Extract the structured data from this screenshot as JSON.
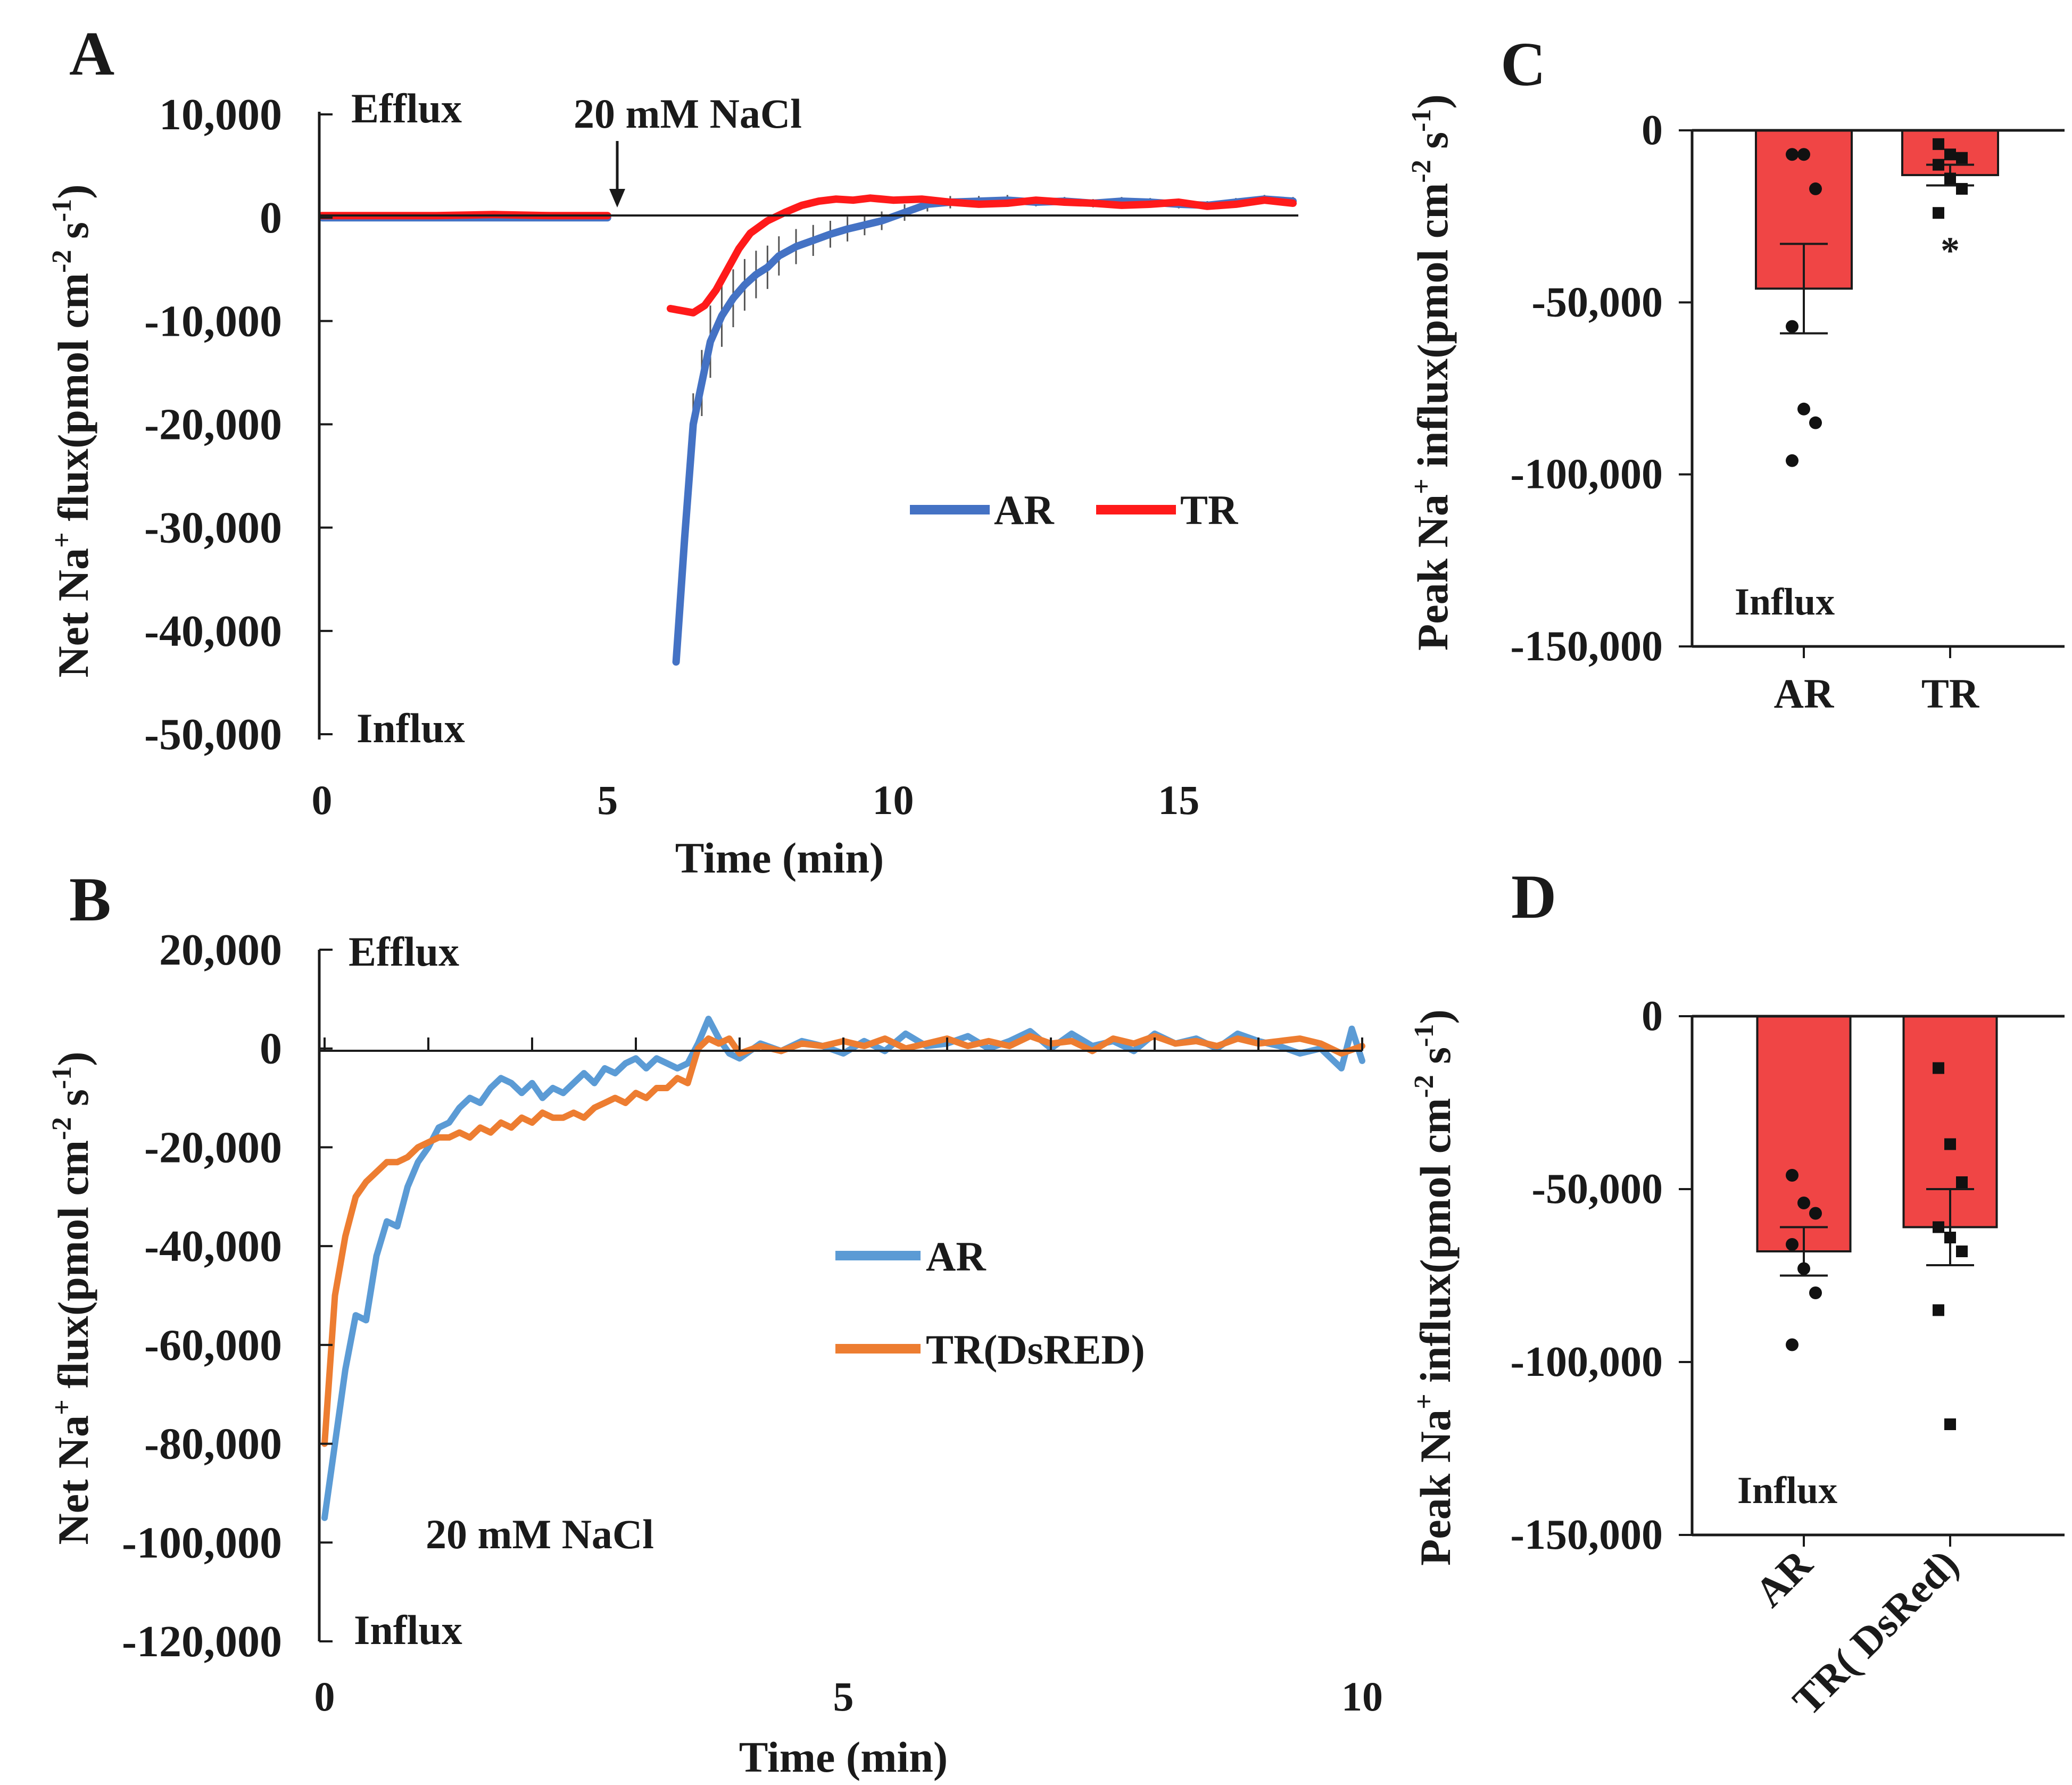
{
  "colors": {
    "ar_a": "#4472c4",
    "tr_a": "#ff1a1a",
    "ar_b": "#5b9bd5",
    "tr_b": "#ed7d31",
    "bar_fill": "#f04545",
    "axis": "#1a1a1a"
  },
  "chart_data": [
    {
      "panel": "A",
      "type": "line",
      "title": "",
      "xlabel": "Time (min)",
      "ylabel": "Net Na+ flux(pmol cm-2 s-1)",
      "ylabel_parts": [
        "Net Na",
        "+",
        " flux(pmol cm",
        "-2",
        " s",
        "-1",
        ")"
      ],
      "xlim": [
        0,
        17
      ],
      "ylim": [
        -50000,
        10000
      ],
      "x_ticks": [
        "0",
        "5",
        "10",
        "15"
      ],
      "x_tick_values": [
        0,
        5,
        10,
        15
      ],
      "y_ticks": [
        "10,000",
        "0",
        "-10,000",
        "-20,000",
        "-30,000",
        "-40,000",
        "-50,000"
      ],
      "y_tick_values": [
        10000,
        0,
        -10000,
        -20000,
        -30000,
        -40000,
        -50000
      ],
      "annotations": {
        "top": "Efflux",
        "bottom": "Influx",
        "treatment": "20 mM NaCl",
        "treatment_x": 5.4
      },
      "legend": [
        "AR",
        "TR"
      ],
      "series": [
        {
          "name": "AR",
          "color_key": "ar_a",
          "x": [
            0,
            1,
            2,
            3,
            4,
            5,
            6.2,
            6.35,
            6.5,
            6.65,
            6.8,
            7.0,
            7.2,
            7.4,
            7.6,
            7.8,
            8.0,
            8.3,
            8.6,
            8.9,
            9.2,
            9.5,
            9.8,
            10.2,
            10.6,
            11.0,
            11.5,
            12.0,
            12.5,
            13.0,
            13.5,
            14.0,
            14.5,
            15.0,
            15.5,
            16.0,
            16.5,
            17.0
          ],
          "y": [
            0,
            0,
            0,
            0,
            0,
            0,
            -43000,
            -31000,
            -20000,
            -16000,
            -12000,
            -9500,
            -7800,
            -6500,
            -5500,
            -4800,
            -3700,
            -2800,
            -2200,
            -1600,
            -1100,
            -700,
            -300,
            500,
            1300,
            1500,
            1600,
            1700,
            1500,
            1600,
            1400,
            1600,
            1500,
            1300,
            1200,
            1500,
            1800,
            1600
          ],
          "error": [
            0,
            0,
            0,
            0,
            0,
            0,
            0,
            0,
            3000,
            3200,
            3500,
            3000,
            2800,
            2500,
            2300,
            2100,
            1900,
            1700,
            1500,
            1300,
            1200,
            1000,
            900,
            800,
            700,
            600,
            500,
            500,
            400,
            400,
            400,
            400,
            400,
            400,
            400,
            400,
            400,
            400
          ]
        },
        {
          "name": "TR",
          "color_key": "tr_a",
          "x": [
            0,
            1,
            2,
            3,
            4,
            5,
            6.1,
            6.3,
            6.5,
            6.7,
            6.9,
            7.1,
            7.3,
            7.5,
            7.8,
            8.1,
            8.4,
            8.7,
            9.0,
            9.3,
            9.6,
            10.0,
            10.5,
            11.0,
            11.5,
            12.0,
            12.5,
            13.0,
            13.5,
            14.0,
            14.5,
            15.0,
            15.5,
            16.0,
            16.5,
            17.0
          ],
          "y": [
            200,
            200,
            200,
            300,
            200,
            200,
            -8800,
            -9000,
            -9200,
            -8500,
            -7000,
            -5000,
            -3000,
            -1500,
            -300,
            500,
            1200,
            1600,
            1800,
            1700,
            1900,
            1700,
            1800,
            1500,
            1300,
            1400,
            1700,
            1500,
            1400,
            1200,
            1300,
            1500,
            1100,
            1300,
            1700,
            1400
          ]
        }
      ]
    },
    {
      "panel": "B",
      "type": "line",
      "title": "",
      "xlabel": "Time (min)",
      "ylabel": "Net Na+ flux(pmol cm-2 s-1)",
      "ylabel_parts": [
        "Net Na",
        "+",
        " flux(pmol cm",
        "-2",
        " s",
        "-1",
        ")"
      ],
      "xlim": [
        0,
        10
      ],
      "ylim": [
        -120000,
        20000
      ],
      "x_ticks": [
        "0",
        "5",
        "10"
      ],
      "x_tick_values": [
        0,
        5,
        10
      ],
      "y_ticks": [
        "20,000",
        "0",
        "-20,000",
        "-40,000",
        "-60,000",
        "-80,000",
        "-100,000",
        "-120,000"
      ],
      "y_tick_values": [
        20000,
        0,
        -20000,
        -40000,
        -60000,
        -80000,
        -100000,
        -120000
      ],
      "annotations": {
        "top": "Efflux",
        "bottom": "Influx",
        "treatment": "20 mM NaCl"
      },
      "legend": [
        "AR",
        "TR(DsRED)"
      ],
      "series": [
        {
          "name": "AR",
          "color_key": "ar_b",
          "x": [
            0,
            0.1,
            0.2,
            0.3,
            0.4,
            0.5,
            0.6,
            0.7,
            0.8,
            0.9,
            1.0,
            1.1,
            1.2,
            1.3,
            1.4,
            1.5,
            1.6,
            1.7,
            1.8,
            1.9,
            2.0,
            2.1,
            2.2,
            2.3,
            2.4,
            2.5,
            2.6,
            2.7,
            2.8,
            2.9,
            3.0,
            3.1,
            3.2,
            3.3,
            3.4,
            3.5,
            3.6,
            3.7,
            3.8,
            3.9,
            4.0,
            4.2,
            4.4,
            4.6,
            4.8,
            5.0,
            5.2,
            5.4,
            5.6,
            5.8,
            6.0,
            6.2,
            6.4,
            6.6,
            6.8,
            7.0,
            7.2,
            7.4,
            7.6,
            7.8,
            8.0,
            8.2,
            8.4,
            8.6,
            8.8,
            9.0,
            9.2,
            9.4,
            9.6,
            9.8,
            9.9,
            10.0
          ],
          "y": [
            -95000,
            -80000,
            -65000,
            -54000,
            -55000,
            -42000,
            -35000,
            -36000,
            -28000,
            -23000,
            -20000,
            -16000,
            -15000,
            -12000,
            -10000,
            -11000,
            -8000,
            -6000,
            -7000,
            -9000,
            -7000,
            -10000,
            -8000,
            -9000,
            -7000,
            -5000,
            -7000,
            -4000,
            -5000,
            -3000,
            -2000,
            -4000,
            -2000,
            -3000,
            -4000,
            -3000,
            1000,
            6000,
            2000,
            -1000,
            -2000,
            1000,
            -500,
            1500,
            500,
            -1000,
            1500,
            -500,
            3000,
            500,
            1000,
            2500,
            0,
            1500,
            3500,
            0,
            3000,
            500,
            1500,
            -500,
            3000,
            1000,
            2000,
            0,
            3000,
            1500,
            500,
            -1000,
            0,
            -4000,
            4000,
            -2500
          ]
        },
        {
          "name": "TR(DsRED)",
          "color_key": "tr_b",
          "x": [
            0,
            0.1,
            0.2,
            0.3,
            0.4,
            0.5,
            0.6,
            0.7,
            0.8,
            0.9,
            1.0,
            1.1,
            1.2,
            1.3,
            1.4,
            1.5,
            1.6,
            1.7,
            1.8,
            1.9,
            2.0,
            2.1,
            2.2,
            2.3,
            2.4,
            2.5,
            2.6,
            2.7,
            2.8,
            2.9,
            3.0,
            3.1,
            3.2,
            3.3,
            3.4,
            3.5,
            3.6,
            3.7,
            3.8,
            3.9,
            4.0,
            4.2,
            4.4,
            4.6,
            4.8,
            5.0,
            5.2,
            5.4,
            5.6,
            5.8,
            6.0,
            6.2,
            6.4,
            6.6,
            6.8,
            7.0,
            7.2,
            7.4,
            7.6,
            7.8,
            8.0,
            8.2,
            8.4,
            8.6,
            8.8,
            9.0,
            9.2,
            9.4,
            9.6,
            9.8,
            10.0
          ],
          "y": [
            -80000,
            -50000,
            -38000,
            -30000,
            -27000,
            -25000,
            -23000,
            -23000,
            -22000,
            -20000,
            -19000,
            -18000,
            -18000,
            -17000,
            -18000,
            -16000,
            -17000,
            -15000,
            -16000,
            -14000,
            -15000,
            -13000,
            -14000,
            -14000,
            -13000,
            -14000,
            -12000,
            -11000,
            -10000,
            -11000,
            -9000,
            -10000,
            -8000,
            -8000,
            -6000,
            -7000,
            0,
            2000,
            1000,
            2000,
            -1000,
            500,
            -500,
            1000,
            500,
            1500,
            500,
            2000,
            0,
            1000,
            2000,
            500,
            1500,
            500,
            2500,
            1000,
            1500,
            -500,
            2000,
            1000,
            2500,
            1000,
            1500,
            500,
            2000,
            1000,
            1500,
            2000,
            1000,
            -1000,
            500
          ]
        }
      ]
    },
    {
      "panel": "C",
      "type": "bar",
      "title": "",
      "xlabel": "",
      "ylabel": "Peak Na+ influx(pmol cm-2 s-1)",
      "ylabel_parts": [
        "Peak Na",
        "+",
        " influx(pmol cm",
        "-2",
        " s",
        "-1",
        ")"
      ],
      "ylim": [
        -150000,
        0
      ],
      "y_ticks": [
        "0",
        "-50,000",
        "-100,000",
        "-150,000"
      ],
      "y_tick_values": [
        0,
        -50000,
        -100000,
        -150000
      ],
      "categories": [
        "AR",
        "TR"
      ],
      "values": [
        -46000,
        -13000
      ],
      "errors": [
        13000,
        3000
      ],
      "points": [
        [
          -7000,
          -7000,
          -17000,
          -57000,
          -81000,
          -85000,
          -96000
        ],
        [
          -4000,
          -7000,
          -8000,
          -10000,
          -14000,
          -17000,
          -24000
        ]
      ],
      "significance": [
        "",
        "*"
      ],
      "annotations": {
        "bottom": "Influx"
      }
    },
    {
      "panel": "D",
      "type": "bar",
      "title": "",
      "xlabel": "",
      "ylabel": "Peak Na+ influx(pmol cm-2 s-1)",
      "ylabel_parts": [
        "Peak Na",
        "+",
        " influx(pmol cm",
        "-2",
        " s",
        "-1",
        ")"
      ],
      "ylim": [
        -150000,
        0
      ],
      "y_ticks": [
        "0",
        "-50,000",
        "-100,000",
        "-150,000"
      ],
      "y_tick_values": [
        0,
        -50000,
        -100000,
        -150000
      ],
      "categories": [
        "AR",
        "TR( DsRed)"
      ],
      "values": [
        -68000,
        -61000
      ],
      "errors": [
        7000,
        11000
      ],
      "points": [
        [
          -46000,
          -54000,
          -57000,
          -66000,
          -73000,
          -80000,
          -95000
        ],
        [
          -15000,
          -37000,
          -48000,
          -61000,
          -64000,
          -68000,
          -85000,
          -118000
        ]
      ],
      "significance": [
        "",
        ""
      ],
      "annotations": {
        "bottom": "Influx"
      }
    }
  ],
  "panels": {
    "A": {
      "label": "A"
    },
    "B": {
      "label": "B"
    },
    "C": {
      "label": "C"
    },
    "D": {
      "label": "D"
    }
  }
}
